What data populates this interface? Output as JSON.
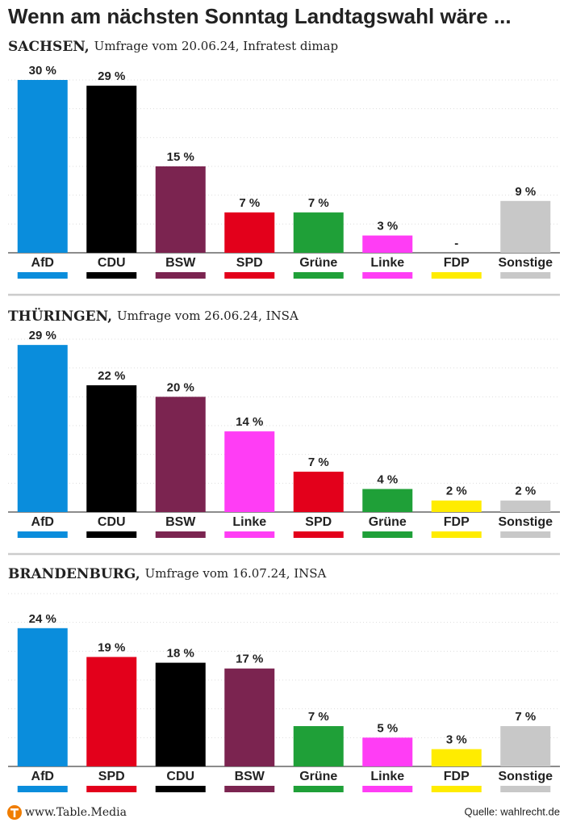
{
  "title": "Wenn am nächsten Sonntag Landtagswahl wäre ...",
  "footer": {
    "site": "www.Table.Media",
    "source": "Quelle: wahlrecht.de"
  },
  "chart_data": [
    {
      "type": "bar",
      "title": "SACHSEN,",
      "subtitle": "Umfrage vom 20.06.24, Infratest dimap",
      "categories": [
        "AfD",
        "CDU",
        "BSW",
        "SPD",
        "Grüne",
        "Linke",
        "FDP",
        "Sonstige"
      ],
      "values": [
        30,
        29,
        15,
        7,
        7,
        3,
        null,
        9
      ],
      "value_labels": [
        "30 %",
        "29 %",
        "15 %",
        "7 %",
        "7 %",
        "3 %",
        "-",
        "9 %"
      ],
      "colors": [
        "#0a8ddc",
        "#000000",
        "#7b2450",
        "#e3001b",
        "#1fa038",
        "#ff3df5",
        "#ffec00",
        "#c8c8c8"
      ],
      "ylim": [
        0,
        30
      ],
      "yticks": [
        0,
        5,
        10,
        15,
        20,
        25,
        30
      ],
      "grid": true
    },
    {
      "type": "bar",
      "title": "THÜRINGEN,",
      "subtitle": "Umfrage vom 26.06.24, INSA",
      "categories": [
        "AfD",
        "CDU",
        "BSW",
        "Linke",
        "SPD",
        "Grüne",
        "FDP",
        "Sonstige"
      ],
      "values": [
        29,
        22,
        20,
        14,
        7,
        4,
        2,
        2
      ],
      "value_labels": [
        "29 %",
        "22 %",
        "20 %",
        "14 %",
        "7 %",
        "4 %",
        "2 %",
        "2 %"
      ],
      "colors": [
        "#0a8ddc",
        "#000000",
        "#7b2450",
        "#ff3df5",
        "#e3001b",
        "#1fa038",
        "#ffec00",
        "#c8c8c8"
      ],
      "ylim": [
        0,
        30
      ],
      "yticks": [
        0,
        5,
        10,
        15,
        20,
        25,
        30
      ],
      "grid": true
    },
    {
      "type": "bar",
      "title": "BRANDENBURG,",
      "subtitle": "Umfrage vom 16.07.24, INSA",
      "categories": [
        "AfD",
        "SPD",
        "CDU",
        "BSW",
        "Grüne",
        "Linke",
        "FDP",
        "Sonstige"
      ],
      "values": [
        24,
        19,
        18,
        17,
        7,
        5,
        3,
        7
      ],
      "value_labels": [
        "24 %",
        "19 %",
        "18 %",
        "17 %",
        "7 %",
        "5 %",
        "3 %",
        "7 %"
      ],
      "colors": [
        "#0a8ddc",
        "#e3001b",
        "#000000",
        "#7b2450",
        "#1fa038",
        "#ff3df5",
        "#ffec00",
        "#c8c8c8"
      ],
      "ylim": [
        0,
        30
      ],
      "yticks": [
        0,
        5,
        10,
        15,
        20,
        25,
        30
      ],
      "grid": true
    }
  ]
}
